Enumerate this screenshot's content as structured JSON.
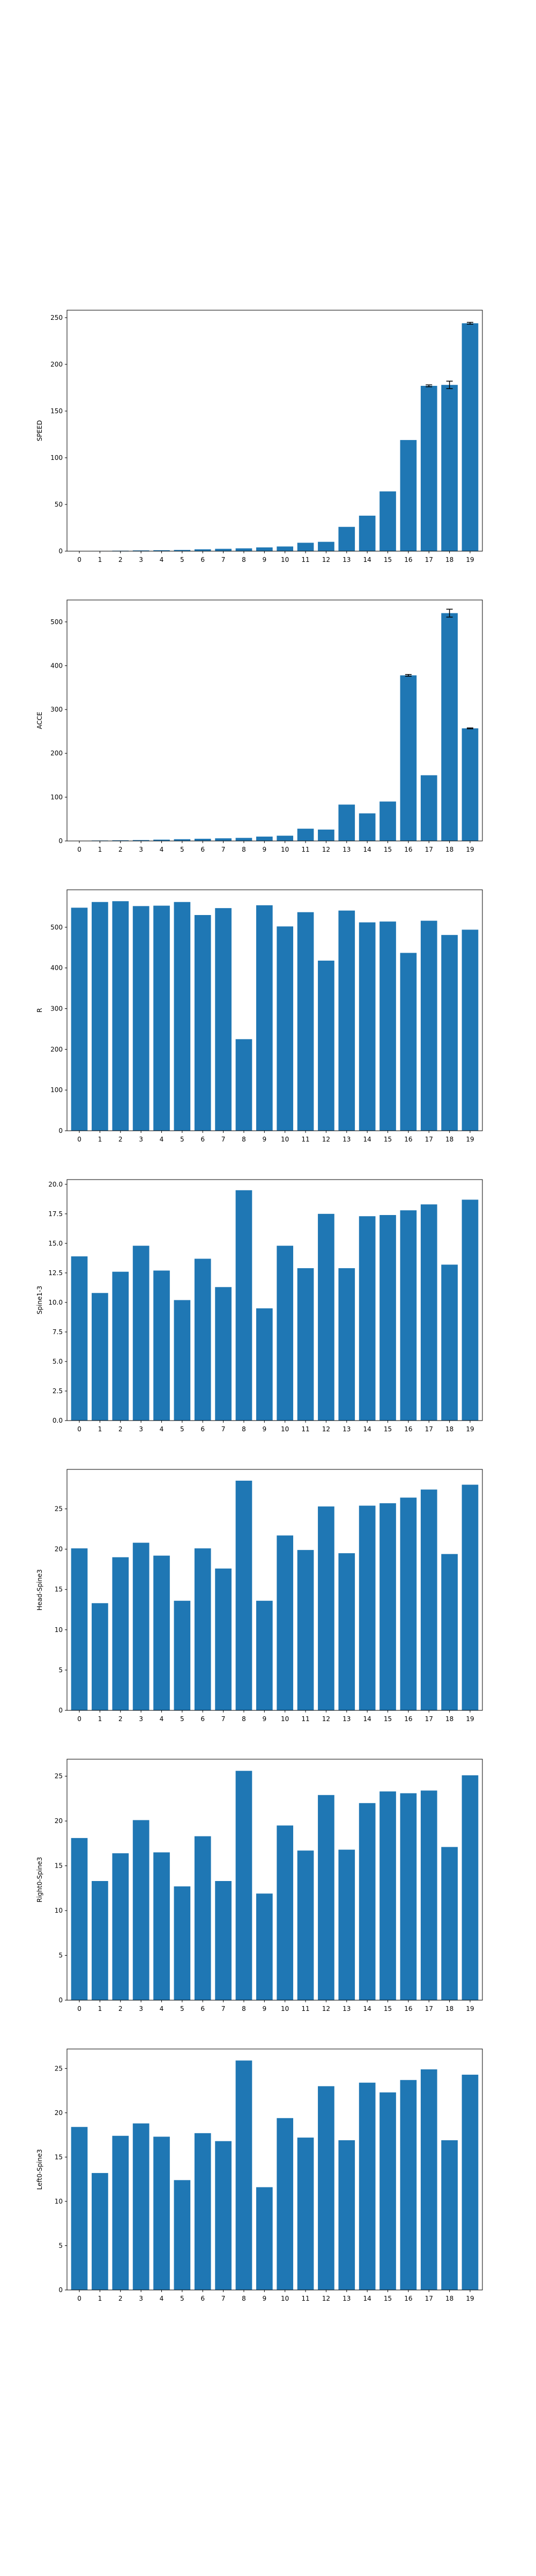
{
  "bar_color": "#1f77b4",
  "chart_data": [
    {
      "type": "bar",
      "categories": [
        "0",
        "1",
        "2",
        "3",
        "4",
        "5",
        "6",
        "7",
        "8",
        "9",
        "10",
        "11",
        "12",
        "13",
        "14",
        "15",
        "16",
        "17",
        "18",
        "19"
      ],
      "values": [
        0.2,
        0.3,
        0.5,
        0.8,
        1,
        1.3,
        2,
        2.5,
        3,
        4,
        5,
        9,
        10,
        26,
        38,
        64,
        119,
        177,
        178,
        244
      ],
      "error": [
        0,
        0,
        0,
        0,
        0,
        0,
        0,
        0,
        0,
        0,
        0,
        0,
        0,
        0,
        0,
        0,
        0,
        1,
        4,
        1
      ],
      "title": "",
      "xlabel": "",
      "ylabel": "SPEED",
      "ylim": [
        0,
        258
      ],
      "yticks": [
        0,
        50,
        100,
        150,
        200,
        250
      ],
      "grid": false
    },
    {
      "type": "bar",
      "categories": [
        "0",
        "1",
        "2",
        "3",
        "4",
        "5",
        "6",
        "7",
        "8",
        "9",
        "10",
        "11",
        "12",
        "13",
        "14",
        "15",
        "16",
        "17",
        "18",
        "19"
      ],
      "values": [
        0.5,
        1,
        1.5,
        2,
        3,
        4,
        5,
        6,
        7,
        10,
        12,
        28,
        26,
        83,
        63,
        90,
        378,
        150,
        520,
        257
      ],
      "error": [
        0,
        0,
        0,
        0,
        0,
        0,
        0,
        0,
        0,
        0,
        0,
        0,
        0,
        0,
        0,
        0,
        2,
        0,
        9,
        1
      ],
      "title": "",
      "xlabel": "",
      "ylabel": "ACCE",
      "ylim": [
        0,
        550
      ],
      "yticks": [
        0,
        100,
        200,
        300,
        400,
        500
      ],
      "grid": false
    },
    {
      "type": "bar",
      "categories": [
        "0",
        "1",
        "2",
        "3",
        "4",
        "5",
        "6",
        "7",
        "8",
        "9",
        "10",
        "11",
        "12",
        "13",
        "14",
        "15",
        "16",
        "17",
        "18",
        "19"
      ],
      "values": [
        548,
        562,
        564,
        552,
        553,
        562,
        530,
        547,
        225,
        554,
        502,
        537,
        418,
        541,
        512,
        514,
        437,
        516,
        481,
        494
      ],
      "error": [
        0,
        0,
        0,
        0,
        0,
        0,
        0,
        0,
        0,
        0,
        0,
        0,
        0,
        0,
        0,
        0,
        0,
        0,
        0,
        0
      ],
      "title": "",
      "xlabel": "",
      "ylabel": "R",
      "ylim": [
        0,
        592
      ],
      "yticks": [
        0,
        100,
        200,
        300,
        400,
        500
      ],
      "grid": false
    },
    {
      "type": "bar",
      "categories": [
        "0",
        "1",
        "2",
        "3",
        "4",
        "5",
        "6",
        "7",
        "8",
        "9",
        "10",
        "11",
        "12",
        "13",
        "14",
        "15",
        "16",
        "17",
        "18",
        "19"
      ],
      "values": [
        13.9,
        10.8,
        12.6,
        14.8,
        12.7,
        10.2,
        13.7,
        11.3,
        19.5,
        9.5,
        14.8,
        12.9,
        17.5,
        12.9,
        17.3,
        17.4,
        17.8,
        18.3,
        13.2,
        18.7
      ],
      "error": [
        0,
        0,
        0,
        0,
        0,
        0,
        0,
        0,
        0,
        0,
        0,
        0,
        0,
        0,
        0,
        0,
        0,
        0,
        0,
        0
      ],
      "title": "",
      "xlabel": "",
      "ylabel": "Spine1-3",
      "ylim": [
        0,
        20.4
      ],
      "yticks": [
        0.0,
        2.5,
        5.0,
        7.5,
        10.0,
        12.5,
        15.0,
        17.5,
        20.0
      ],
      "grid": false
    },
    {
      "type": "bar",
      "categories": [
        "0",
        "1",
        "2",
        "3",
        "4",
        "5",
        "6",
        "7",
        "8",
        "9",
        "10",
        "11",
        "12",
        "13",
        "14",
        "15",
        "16",
        "17",
        "18",
        "19"
      ],
      "values": [
        20.1,
        13.3,
        19.0,
        20.8,
        19.2,
        13.6,
        20.1,
        17.6,
        28.5,
        13.6,
        21.7,
        19.9,
        25.3,
        19.5,
        25.4,
        25.7,
        26.4,
        27.4,
        19.4,
        28.0
      ],
      "error": [
        0,
        0,
        0,
        0,
        0,
        0,
        0,
        0,
        0,
        0,
        0,
        0,
        0,
        0,
        0,
        0,
        0,
        0,
        0,
        0
      ],
      "title": "",
      "xlabel": "",
      "ylabel": "Head-Spine3",
      "ylim": [
        0,
        29.9
      ],
      "yticks": [
        0,
        5,
        10,
        15,
        20,
        25
      ],
      "grid": false
    },
    {
      "type": "bar",
      "categories": [
        "0",
        "1",
        "2",
        "3",
        "4",
        "5",
        "6",
        "7",
        "8",
        "9",
        "10",
        "11",
        "12",
        "13",
        "14",
        "15",
        "16",
        "17",
        "18",
        "19"
      ],
      "values": [
        18.1,
        13.3,
        16.4,
        20.1,
        16.5,
        12.7,
        18.3,
        13.3,
        25.6,
        11.9,
        19.5,
        16.7,
        22.9,
        16.8,
        22.0,
        23.3,
        23.1,
        23.4,
        17.1,
        25.1
      ],
      "error": [
        0,
        0,
        0,
        0,
        0,
        0,
        0,
        0,
        0,
        0,
        0,
        0,
        0,
        0,
        0,
        0,
        0,
        0,
        0,
        0
      ],
      "title": "",
      "xlabel": "",
      "ylabel": "Right0-Spine3",
      "ylim": [
        0,
        26.9
      ],
      "yticks": [
        0,
        5,
        10,
        15,
        20,
        25
      ],
      "grid": false
    },
    {
      "type": "bar",
      "categories": [
        "0",
        "1",
        "2",
        "3",
        "4",
        "5",
        "6",
        "7",
        "8",
        "9",
        "10",
        "11",
        "12",
        "13",
        "14",
        "15",
        "16",
        "17",
        "18",
        "19"
      ],
      "values": [
        18.4,
        13.2,
        17.4,
        18.8,
        17.3,
        12.4,
        17.7,
        16.8,
        25.9,
        11.6,
        19.4,
        17.2,
        23.0,
        16.9,
        23.4,
        22.3,
        23.7,
        24.9,
        16.9,
        24.3
      ],
      "error": [
        0,
        0,
        0,
        0,
        0,
        0,
        0,
        0,
        0,
        0,
        0,
        0,
        0,
        0,
        0,
        0,
        0,
        0,
        0,
        0
      ],
      "title": "",
      "xlabel": "",
      "ylabel": "Left0-Spine3",
      "ylim": [
        0,
        27.2
      ],
      "yticks": [
        0,
        5,
        10,
        15,
        20,
        25
      ],
      "grid": false
    }
  ]
}
